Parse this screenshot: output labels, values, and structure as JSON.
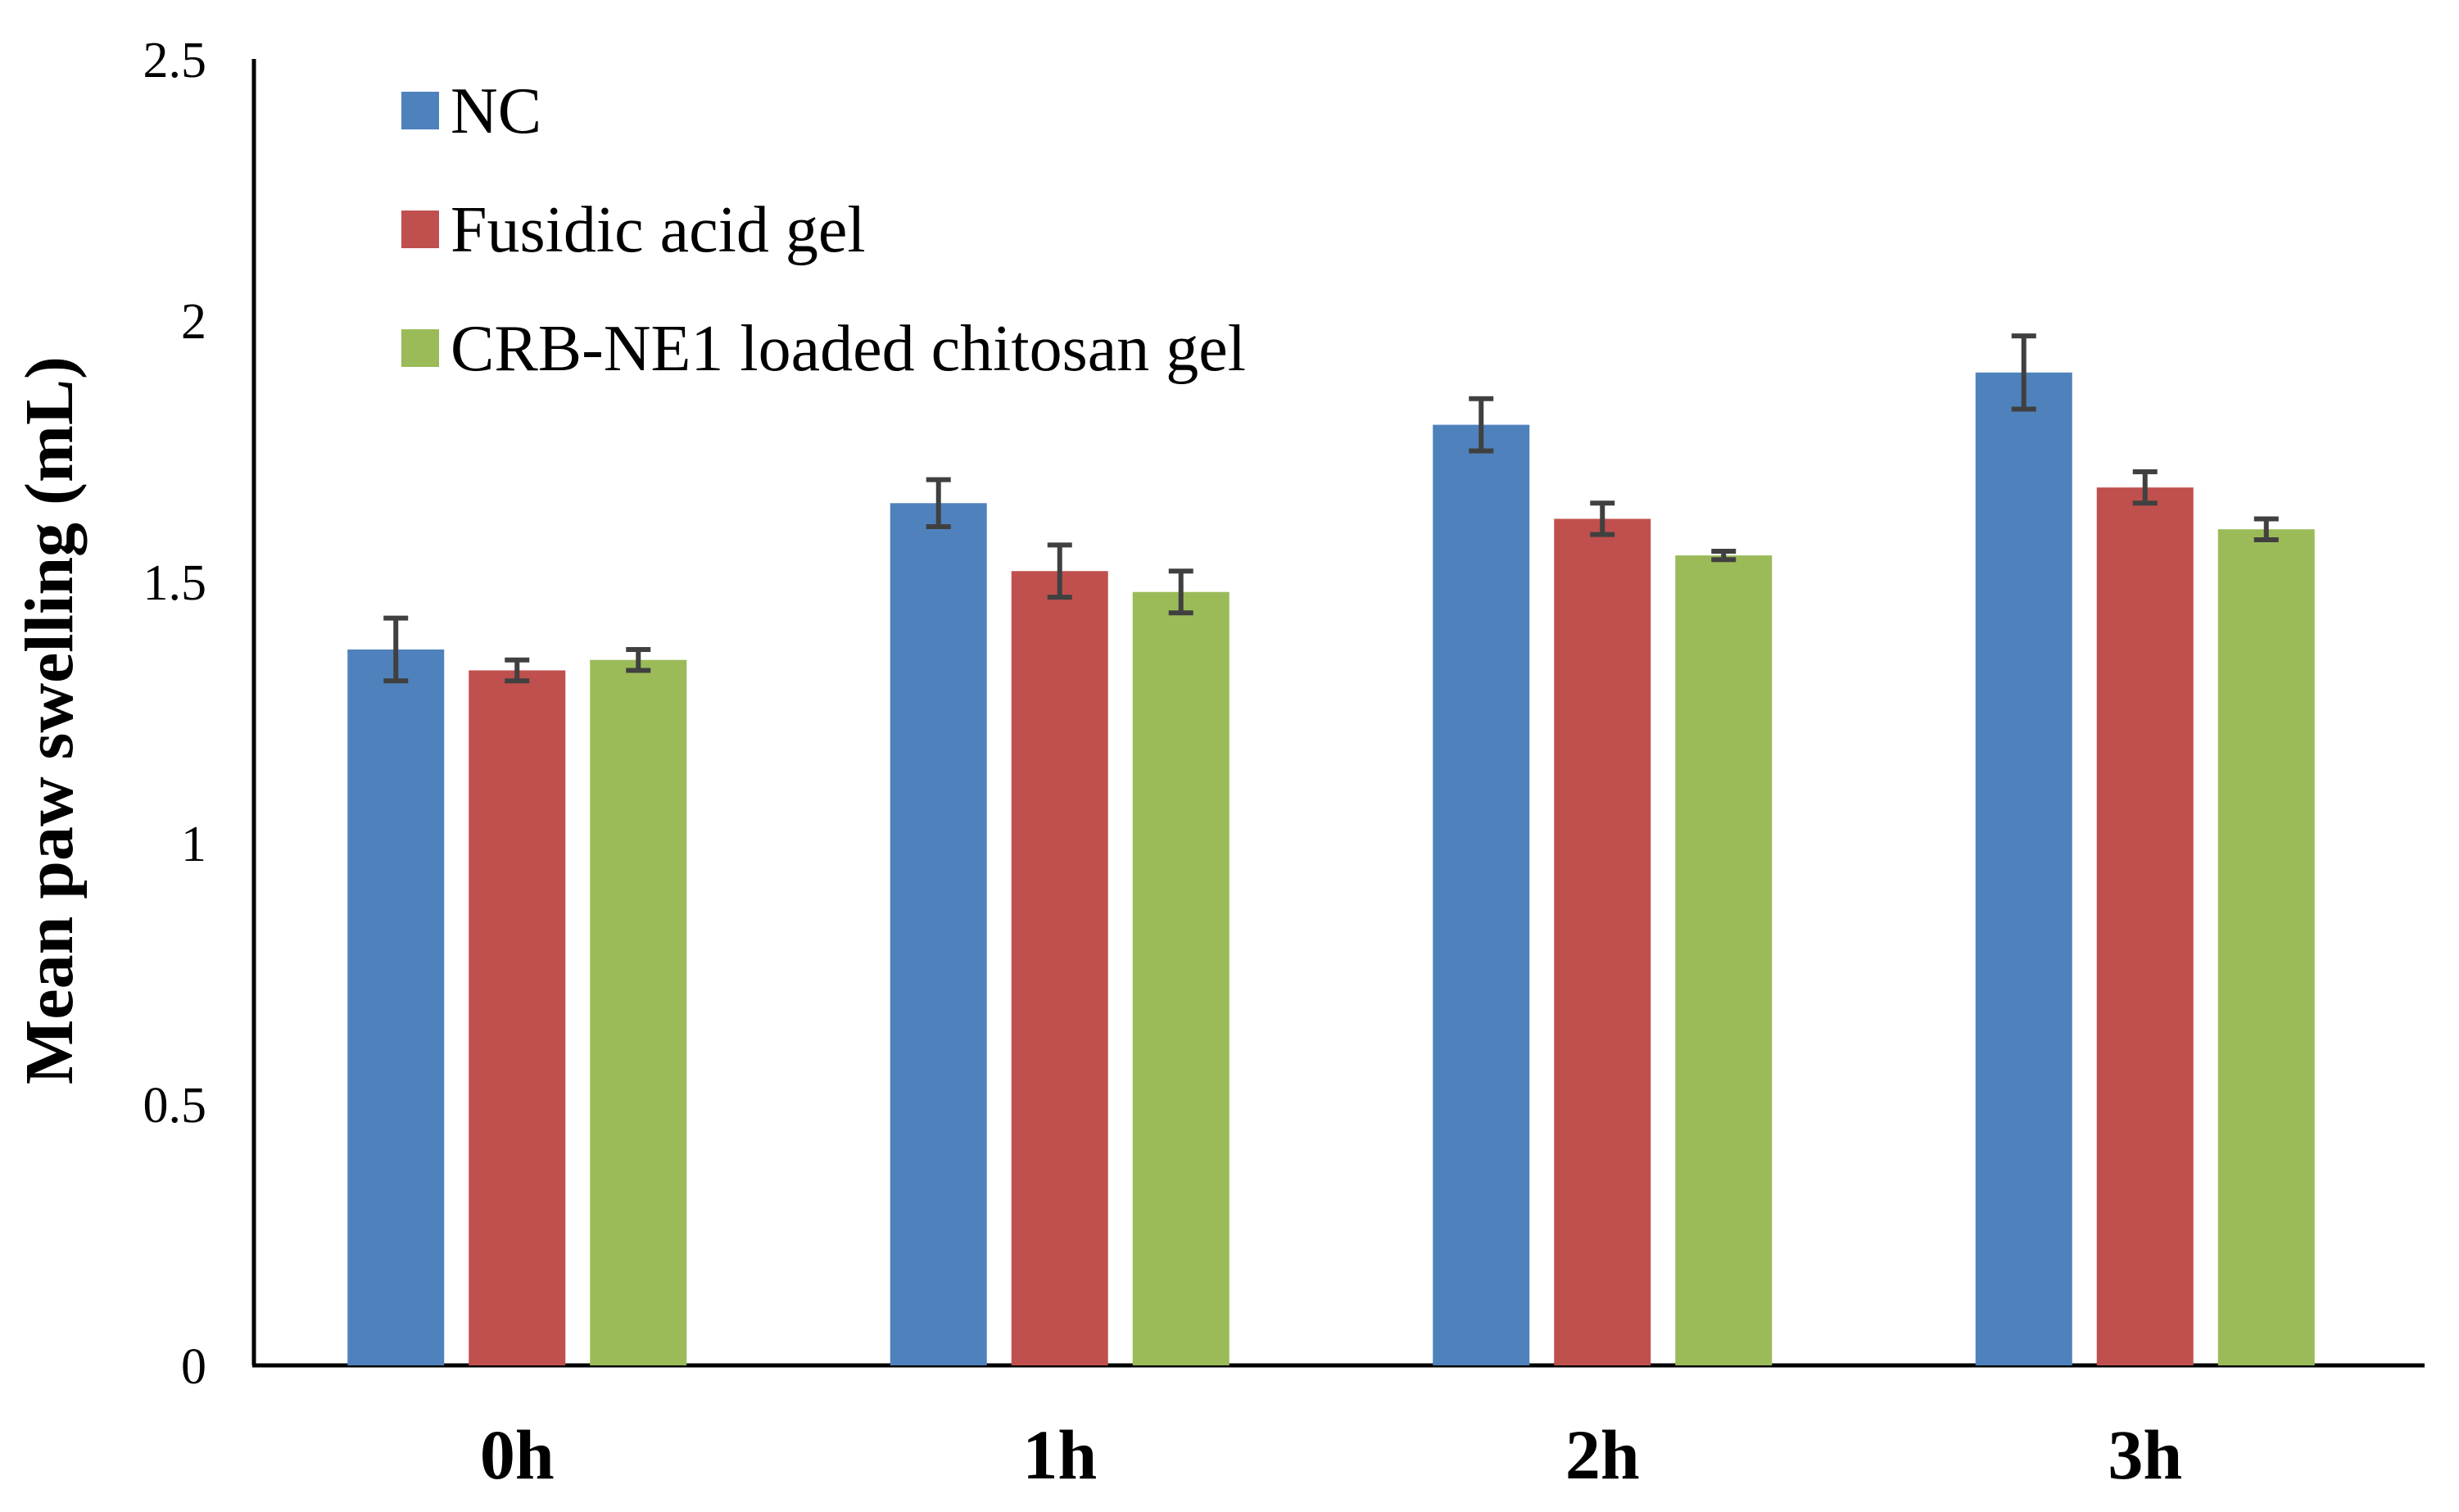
{
  "chart_data": {
    "type": "bar",
    "title": "",
    "xlabel": "",
    "ylabel": "Mean paw swelling (mL)",
    "categories": [
      "0h",
      "1h",
      "2h",
      "3h"
    ],
    "ylim": [
      0,
      2.5
    ],
    "yticks": [
      0,
      0.5,
      1,
      1.5,
      2,
      2.5
    ],
    "ytick_labels": [
      "0",
      "0.5",
      "1",
      "1.5",
      "2",
      "2.5"
    ],
    "grid": false,
    "legend_position": "top-left",
    "error_bars": true,
    "series": [
      {
        "name": "NC",
        "color": "#4F81BD",
        "values": [
          1.37,
          1.65,
          1.8,
          1.9
        ],
        "errors": [
          0.06,
          0.045,
          0.05,
          0.07
        ]
      },
      {
        "name": "Fusidic acid gel",
        "color": "#C0504D",
        "values": [
          1.33,
          1.52,
          1.62,
          1.68
        ],
        "errors": [
          0.02,
          0.05,
          0.03,
          0.03
        ]
      },
      {
        "name": "CRB-NE1 loaded chitosan gel",
        "color": "#9BBB59",
        "values": [
          1.35,
          1.48,
          1.55,
          1.6
        ],
        "errors": [
          0.02,
          0.04,
          0.008,
          0.02
        ]
      }
    ]
  }
}
